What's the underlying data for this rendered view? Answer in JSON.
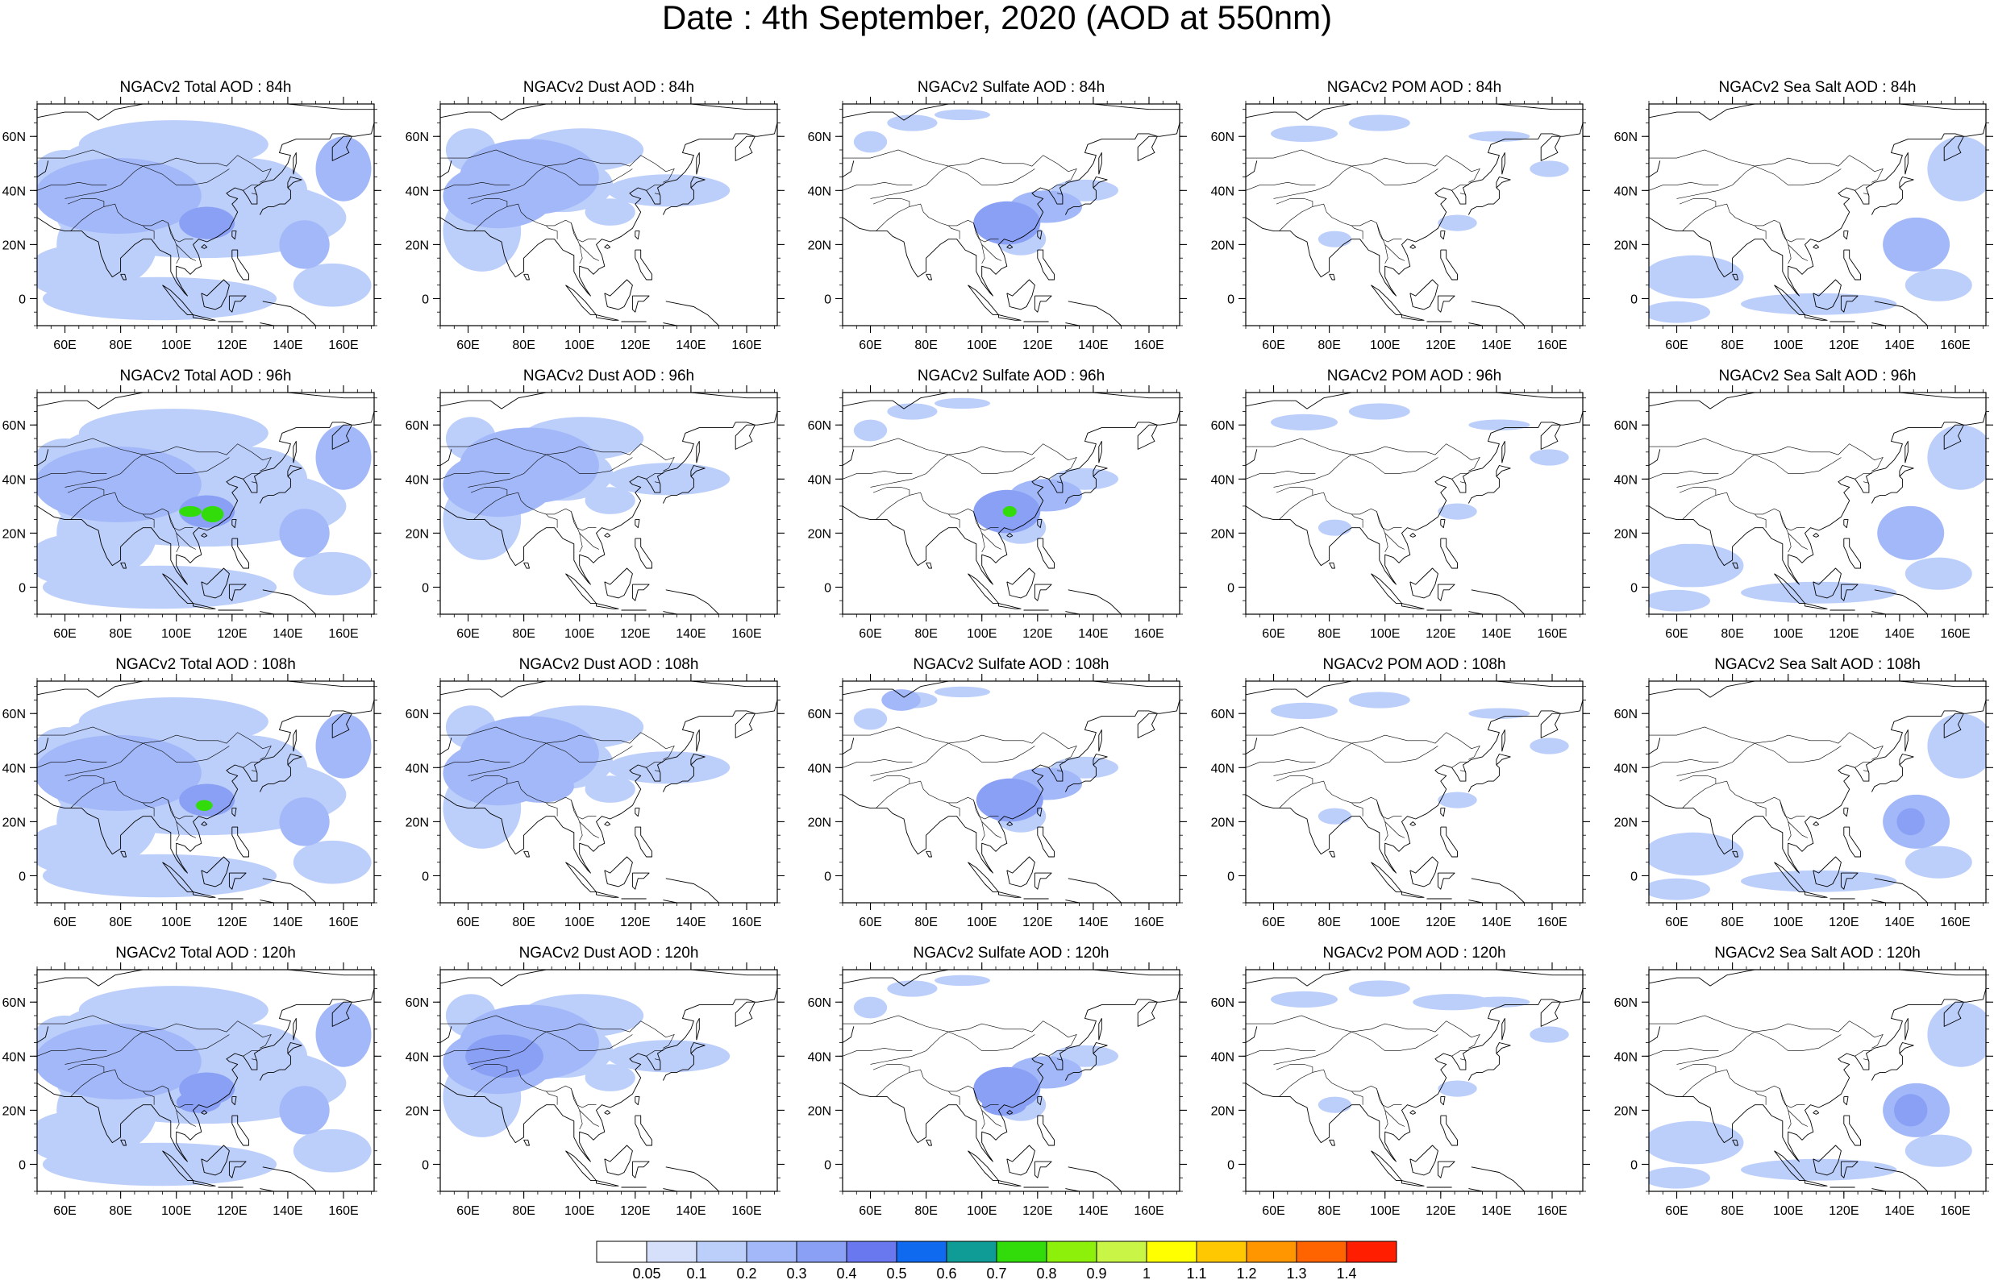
{
  "title": "Date : 4th September, 2020 (AOD at 550nm)",
  "panel_titles": [
    [
      "NGACv2 Total AOD : 84h",
      "NGACv2 Dust AOD : 84h",
      "NGACv2 Sulfate AOD : 84h",
      "NGACv2 POM AOD : 84h",
      "NGACv2 Sea Salt AOD : 84h"
    ],
    [
      "NGACv2 Total AOD : 96h",
      "NGACv2 Dust AOD : 96h",
      "NGACv2 Sulfate AOD : 96h",
      "NGACv2 POM AOD : 96h",
      "NGACv2 Sea Salt AOD : 96h"
    ],
    [
      "NGACv2 Total AOD : 108h",
      "NGACv2 Dust AOD : 108h",
      "NGACv2 Sulfate AOD : 108h",
      "NGACv2 POM AOD : 108h",
      "NGACv2 Sea Salt AOD : 108h"
    ],
    [
      "NGACv2 Total AOD : 120h",
      "NGACv2 Dust AOD : 120h",
      "NGACv2 Sulfate AOD : 120h",
      "NGACv2 POM AOD : 120h",
      "NGACv2 Sea Salt  AOD : 120h"
    ]
  ],
  "lon_ticks": [
    {
      "lon": 60,
      "label": "60E"
    },
    {
      "lon": 80,
      "label": "80E"
    },
    {
      "lon": 100,
      "label": "100E"
    },
    {
      "lon": 120,
      "label": "120E"
    },
    {
      "lon": 140,
      "label": "140E"
    },
    {
      "lon": 160,
      "label": "160E"
    }
  ],
  "lat_ticks": [
    {
      "lat": 0,
      "label": "0"
    },
    {
      "lat": 20,
      "label": "20N"
    },
    {
      "lat": 40,
      "label": "40N"
    },
    {
      "lat": 60,
      "label": "60N"
    }
  ],
  "map_extent": {
    "lon_min": 50,
    "lon_max": 171,
    "lat_min": -10,
    "lat_max": 72
  },
  "colorbar": {
    "labels": [
      "0.05",
      "0.1",
      "0.2",
      "0.3",
      "0.4",
      "0.5",
      "0.6",
      "0.7",
      "0.8",
      "0.9",
      "1",
      "1.1",
      "1.2",
      "1.3",
      "1.4"
    ],
    "colors": [
      "#ffffff",
      "#d6e0fb",
      "#bccefa",
      "#a3b8f8",
      "#8aa0f5",
      "#6a78f0",
      "#0f6af0",
      "#0f9b96",
      "#32dc0a",
      "#8cf00a",
      "#c8f546",
      "#ffff00",
      "#ffc800",
      "#ff9600",
      "#ff6400",
      "#ff1e00"
    ]
  }
}
